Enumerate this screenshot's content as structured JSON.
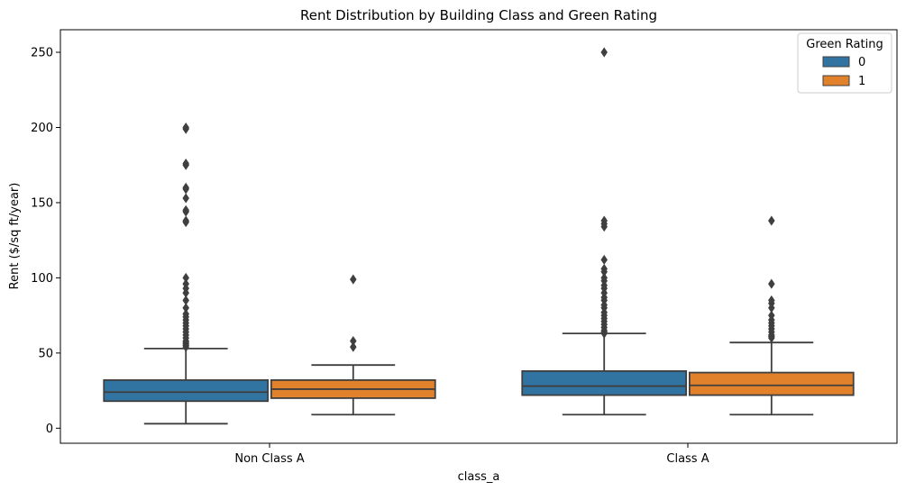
{
  "chart_data": {
    "type": "box",
    "title": "Rent Distribution by Building Class and Green Rating",
    "xlabel": "class_a",
    "ylabel": "Rent ($/sq ft/year)",
    "categories": [
      "Non Class A",
      "Class A"
    ],
    "ylim": [
      -10,
      265
    ],
    "yticks": [
      0,
      50,
      100,
      150,
      200,
      250
    ],
    "grid": false,
    "legend": {
      "title": "Green Rating",
      "position": "top-right"
    },
    "series": [
      {
        "name": "0",
        "color": "#3274a1",
        "boxes": [
          {
            "category": "Non Class A",
            "whisker_low": 3,
            "q1": 18,
            "median": 24,
            "q3": 32,
            "whisker_high": 53,
            "outliers": [
              54,
              55,
              56,
              57,
              58,
              60,
              62,
              64,
              66,
              68,
              70,
              72,
              74,
              76,
              80,
              85,
              90,
              93,
              96,
              100,
              137,
              138,
              144,
              145,
              153,
              159,
              160,
              175,
              176,
              199,
              200
            ]
          },
          {
            "category": "Class A",
            "whisker_low": 9,
            "q1": 22,
            "median": 28,
            "q3": 38,
            "whisker_high": 63,
            "outliers": [
              63,
              64,
              65,
              67,
              69,
              71,
              73,
              75,
              77,
              80,
              82,
              85,
              87,
              90,
              93,
              95,
              98,
              100,
              104,
              106,
              112,
              134,
              136,
              138,
              250
            ]
          }
        ]
      },
      {
        "name": "1",
        "color": "#e1812c",
        "boxes": [
          {
            "category": "Non Class A",
            "whisker_low": 9,
            "q1": 20,
            "median": 26,
            "q3": 32,
            "whisker_high": 42,
            "outliers": [
              54,
              58,
              99
            ]
          },
          {
            "category": "Class A",
            "whisker_low": 9,
            "q1": 22,
            "median": 28.5,
            "q3": 37,
            "whisker_high": 57,
            "outliers": [
              60,
              61,
              62,
              64,
              66,
              68,
              70,
              72,
              75,
              80,
              83,
              85,
              96,
              138
            ]
          }
        ]
      }
    ]
  }
}
